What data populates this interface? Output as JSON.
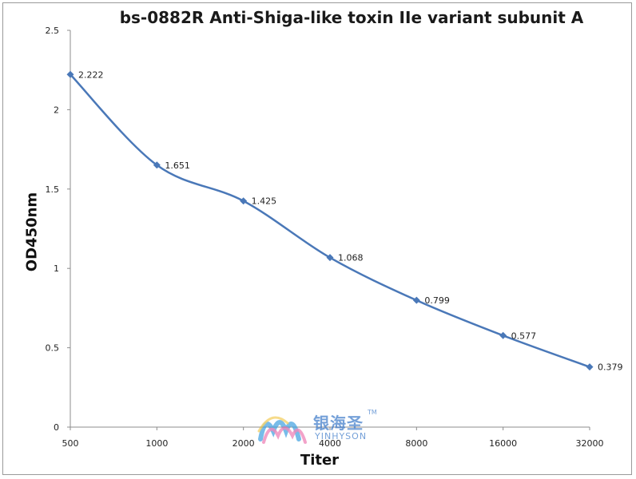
{
  "chart_data": {
    "type": "line",
    "title": "bs-0882R Anti-Shiga-like toxin IIe variant subunit A",
    "xlabel": "Titer",
    "ylabel": "OD450nm",
    "categories": [
      "500",
      "1000",
      "2000",
      "4000",
      "8000",
      "16000",
      "32000"
    ],
    "series": [
      {
        "values": [
          2.222,
          1.651,
          1.425,
          1.068,
          0.799,
          0.577,
          0.379
        ]
      }
    ],
    "data_labels": [
      "2.222",
      "1.651",
      "1.425",
      "1.068",
      "0.799",
      "0.577",
      "0.379"
    ],
    "y_ticks": [
      "0",
      "0.5",
      "1",
      "1.5",
      "2",
      "2.5"
    ],
    "ylim": [
      0,
      2.5
    ],
    "grid": false,
    "legend": "none",
    "line_color": "#4a78b8",
    "marker": "diamond"
  },
  "watermark": {
    "brand_cn": "银海圣",
    "brand_en": "YINHYSON",
    "tm": "TM"
  }
}
